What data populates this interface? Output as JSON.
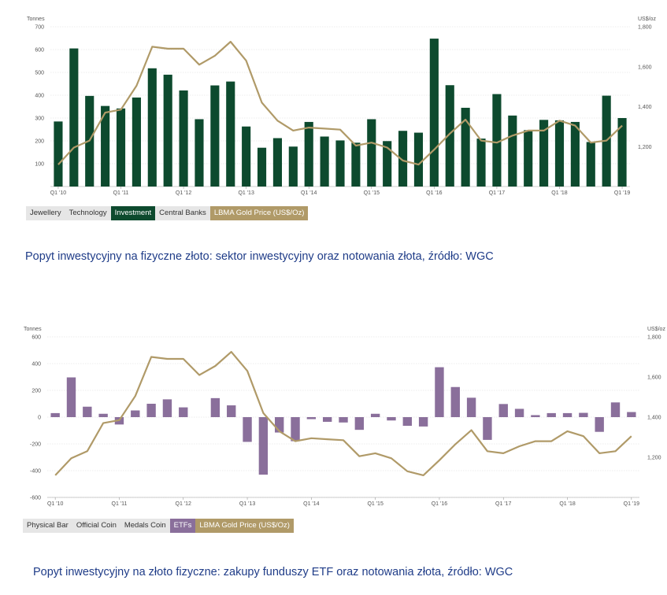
{
  "chart_data": [
    {
      "type": "bar",
      "title": "",
      "ylabel": "Tonnes",
      "y2label": "US$/oz",
      "ylim": [
        0,
        700
      ],
      "y2lim": [
        1000,
        1800
      ],
      "yticks": [
        100,
        200,
        300,
        400,
        500,
        600,
        700
      ],
      "y2ticks": [
        1200,
        1400,
        1600,
        1800
      ],
      "y2tick_labels": [
        "1,200",
        "1,400",
        "1,600",
        "1,800"
      ],
      "xtick_labels": [
        "Q1 '10",
        "Q1 '11",
        "Q1 '12",
        "Q1 '13",
        "Q1 '14",
        "Q1 '15",
        "Q1 '16",
        "Q1 '17",
        "Q1 '18",
        "Q1 '19"
      ],
      "xtick_positions": [
        0,
        4,
        8,
        12,
        16,
        20,
        24,
        28,
        32,
        36
      ],
      "series": [
        {
          "name": "Investment",
          "kind": "bar",
          "color": "#0d4a2e",
          "values": [
            285,
            605,
            397,
            353,
            342,
            390,
            518,
            490,
            421,
            295,
            443,
            460,
            263,
            170,
            212,
            175,
            283,
            219,
            202,
            192,
            295,
            199,
            244,
            236,
            648,
            444,
            345,
            210,
            405,
            311,
            247,
            292,
            290,
            283,
            195,
            398,
            300
          ]
        },
        {
          "name": "LBMA Gold Price (US$/Oz)",
          "kind": "line",
          "axis": "right",
          "color": "#b09a68",
          "values": [
            1110,
            1195,
            1230,
            1370,
            1385,
            1505,
            1700,
            1690,
            1690,
            1610,
            1655,
            1725,
            1630,
            1420,
            1330,
            1280,
            1295,
            1290,
            1285,
            1205,
            1220,
            1195,
            1130,
            1110,
            1185,
            1265,
            1335,
            1230,
            1220,
            1255,
            1280,
            1280,
            1330,
            1305,
            1220,
            1230,
            1305
          ]
        }
      ],
      "legend": [
        "Jewellery",
        "Technology",
        "Investment",
        "Central Banks",
        "LBMA Gold Price (US$/Oz)"
      ],
      "legend_active": [
        false,
        false,
        true,
        false,
        true
      ],
      "legend_colors": {
        "Investment": "#0d4a2e",
        "LBMA Gold Price (US$/Oz)": "#b09a68",
        "inactive": "#e6e6e6"
      }
    },
    {
      "type": "bar",
      "title": "",
      "ylabel": "Tonnes",
      "y2label": "US$/oz",
      "ylim": [
        -600,
        600
      ],
      "y2lim": [
        1000,
        1800
      ],
      "yticks": [
        -600,
        -400,
        -200,
        0,
        200,
        400,
        600
      ],
      "y2ticks": [
        1200,
        1400,
        1600,
        1800
      ],
      "y2tick_labels": [
        "1,200",
        "1,400",
        "1,600",
        "1,800"
      ],
      "xtick_labels": [
        "Q1 '10",
        "Q1 '11",
        "Q1 '12",
        "Q1 '13",
        "Q1 '14",
        "Q1 '15",
        "Q1 '16",
        "Q1 '17",
        "Q1 '18",
        "Q1 '19"
      ],
      "xtick_positions": [
        0,
        4,
        8,
        12,
        16,
        20,
        24,
        28,
        32,
        36
      ],
      "series": [
        {
          "name": "ETFs",
          "kind": "bar",
          "color": "#8a6f9b",
          "values": [
            30,
            297,
            78,
            25,
            -55,
            50,
            100,
            133,
            73,
            0,
            142,
            88,
            -185,
            -430,
            -115,
            -180,
            -15,
            -35,
            -40,
            -95,
            25,
            -25,
            -65,
            -70,
            373,
            225,
            145,
            -170,
            98,
            62,
            15,
            30,
            30,
            32,
            -110,
            110,
            38
          ]
        },
        {
          "name": "LBMA Gold Price (US$/Oz)",
          "kind": "line",
          "axis": "right",
          "color": "#b09a68",
          "values": [
            1110,
            1195,
            1230,
            1370,
            1385,
            1505,
            1700,
            1690,
            1690,
            1610,
            1655,
            1725,
            1630,
            1420,
            1330,
            1280,
            1295,
            1290,
            1285,
            1205,
            1220,
            1195,
            1130,
            1110,
            1185,
            1265,
            1335,
            1230,
            1220,
            1255,
            1280,
            1280,
            1330,
            1305,
            1220,
            1230,
            1305
          ]
        }
      ],
      "legend": [
        "Physical Bar",
        "Official Coin",
        "Medals Coin",
        "ETFs",
        "LBMA Gold Price (US$/Oz)"
      ],
      "legend_active": [
        false,
        false,
        false,
        true,
        true
      ],
      "legend_colors": {
        "ETFs": "#8a6f9b",
        "LBMA Gold Price (US$/Oz)": "#b09a68",
        "inactive": "#e6e6e6"
      }
    }
  ],
  "captions": {
    "chart1": "Popyt inwestycyjny na fizyczne złoto: sektor inwestycyjny oraz notowania złota, źródło: WGC",
    "chart2": "Popyt inwestycyjny na złoto fizyczne: zakupy funduszy ETF oraz notowania złota, źródło: WGC"
  }
}
